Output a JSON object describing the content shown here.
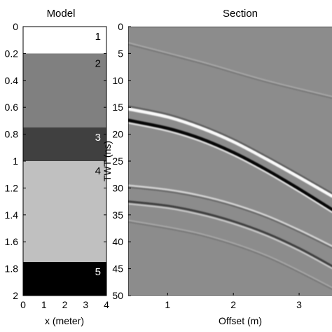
{
  "chart_data": [
    {
      "type": "heatmap",
      "title": "Model",
      "xlabel": "x (meter)",
      "ylabel": "",
      "xlim": [
        0,
        4
      ],
      "ylim": [
        2,
        0
      ],
      "xticks": [
        "0",
        "1",
        "2",
        "3",
        "4"
      ],
      "yticks": [
        "0",
        "0.2",
        "0.4",
        "0.6",
        "0.8",
        "1",
        "1.2",
        "1.4",
        "1.6",
        "1.8",
        "2"
      ],
      "layers": [
        {
          "label": "1",
          "top": 0.0,
          "bottom": 0.2,
          "color": "#ffffff",
          "label_color": "#000000"
        },
        {
          "label": "2",
          "top": 0.2,
          "bottom": 0.75,
          "color": "#808080",
          "label_color": "#000000"
        },
        {
          "label": "3",
          "top": 0.75,
          "bottom": 1.0,
          "color": "#404040",
          "label_color": "#ffffff"
        },
        {
          "label": "4",
          "top": 1.0,
          "bottom": 1.75,
          "color": "#c0c0c0",
          "label_color": "#000000"
        },
        {
          "label": "5",
          "top": 1.75,
          "bottom": 2.0,
          "color": "#000000",
          "label_color": "#ffffff"
        }
      ]
    },
    {
      "type": "heatmap",
      "title": "Section",
      "xlabel": "Offset (m)",
      "ylabel": "TWT (ns)",
      "xlim": [
        0.4,
        3.5
      ],
      "ylim": [
        50,
        0
      ],
      "xticks": [
        "1",
        "2",
        "3"
      ],
      "yticks": [
        "0",
        "5",
        "10",
        "15",
        "20",
        "25",
        "30",
        "35",
        "40",
        "45",
        "50"
      ],
      "background": "#8c8c8c",
      "events": [
        {
          "name_hint": "faint",
          "points": [
            [
              0.4,
              3.0
            ],
            [
              1.5,
              6.5
            ],
            [
              2.5,
              10.0
            ],
            [
              3.5,
              13.0
            ]
          ],
          "style": "faint"
        },
        {
          "name_hint": "strong",
          "points": [
            [
              0.4,
              15.3
            ],
            [
              1.0,
              16.8
            ],
            [
              1.5,
              18.8
            ],
            [
              2.0,
              21.4
            ],
            [
              2.5,
              24.6
            ],
            [
              3.0,
              28.0
            ],
            [
              3.5,
              31.5
            ]
          ],
          "style": "strong-white"
        },
        {
          "name_hint": "strong",
          "points": [
            [
              0.4,
              17.4
            ],
            [
              1.0,
              18.9
            ],
            [
              1.5,
              20.8
            ],
            [
              2.0,
              23.4
            ],
            [
              2.5,
              26.6
            ],
            [
              3.0,
              30.2
            ],
            [
              3.5,
              34.0
            ]
          ],
          "style": "strong-black"
        },
        {
          "name_hint": "mid",
          "points": [
            [
              0.4,
              29.5
            ],
            [
              1.0,
              30.3
            ],
            [
              1.5,
              31.4
            ],
            [
              2.0,
              33.0
            ],
            [
              2.5,
              35.1
            ],
            [
              3.0,
              37.8
            ],
            [
              3.5,
              40.8
            ]
          ],
          "style": "mid"
        },
        {
          "name_hint": "mid",
          "points": [
            [
              0.4,
              32.5
            ],
            [
              1.0,
              33.3
            ],
            [
              1.5,
              34.5
            ],
            [
              2.0,
              36.2
            ],
            [
              2.5,
              38.4
            ],
            [
              3.0,
              41.2
            ],
            [
              3.5,
              44.5
            ]
          ],
          "style": "mid-dark"
        },
        {
          "name_hint": "faint",
          "points": [
            [
              0.4,
              36.0
            ],
            [
              1.5,
              38.5
            ],
            [
              2.5,
              42.5
            ],
            [
              3.5,
              48.5
            ]
          ],
          "style": "faint"
        }
      ]
    }
  ]
}
